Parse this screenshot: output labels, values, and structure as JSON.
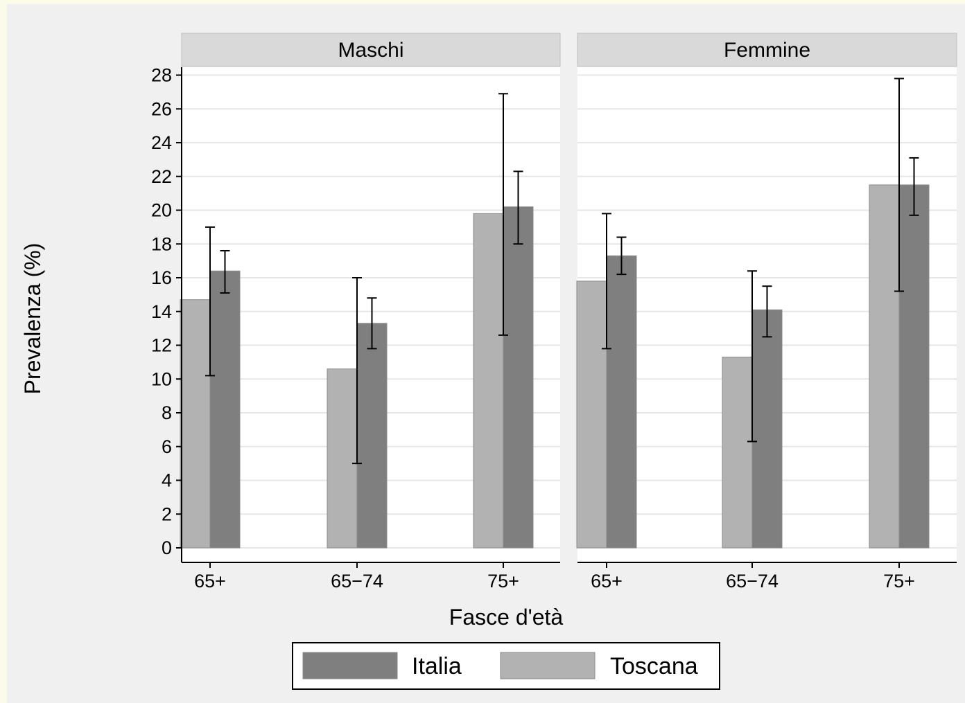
{
  "chart_data": {
    "type": "bar",
    "title": "",
    "xlabel": "Fasce d'età",
    "ylabel": "Prevalenza (%)",
    "ylim": [
      0,
      28
    ],
    "yticks": [
      0,
      2,
      4,
      6,
      8,
      10,
      12,
      14,
      16,
      18,
      20,
      22,
      24,
      26,
      28
    ],
    "grid": true,
    "legend_position": "bottom",
    "categories": [
      "65+",
      "65−74",
      "75+"
    ],
    "series_styles": [
      {
        "name": "Toscana",
        "color": "#b2b2b2"
      },
      {
        "name": "Italia",
        "color": "#7f7f7f"
      }
    ],
    "legend": [
      {
        "name": "Italia",
        "color": "#7f7f7f"
      },
      {
        "name": "Toscana",
        "color": "#b2b2b2"
      }
    ],
    "panels": [
      {
        "title": "Maschi",
        "series": [
          {
            "name": "Toscana",
            "values": [
              14.7,
              10.6,
              19.8
            ],
            "ci_low": [
              10.2,
              5.0,
              12.6
            ],
            "ci_high": [
              19.0,
              16.0,
              26.9
            ]
          },
          {
            "name": "Italia",
            "values": [
              16.4,
              13.3,
              20.2
            ],
            "ci_low": [
              15.1,
              11.8,
              18.0
            ],
            "ci_high": [
              17.6,
              14.8,
              22.3
            ]
          }
        ]
      },
      {
        "title": "Femmine",
        "series": [
          {
            "name": "Toscana",
            "values": [
              15.8,
              11.3,
              21.5
            ],
            "ci_low": [
              11.8,
              6.3,
              15.2
            ],
            "ci_high": [
              19.8,
              16.4,
              27.8
            ]
          },
          {
            "name": "Italia",
            "values": [
              17.3,
              14.1,
              21.5
            ],
            "ci_low": [
              16.2,
              12.5,
              19.7
            ],
            "ci_high": [
              18.4,
              15.5,
              23.1
            ]
          }
        ]
      }
    ]
  }
}
